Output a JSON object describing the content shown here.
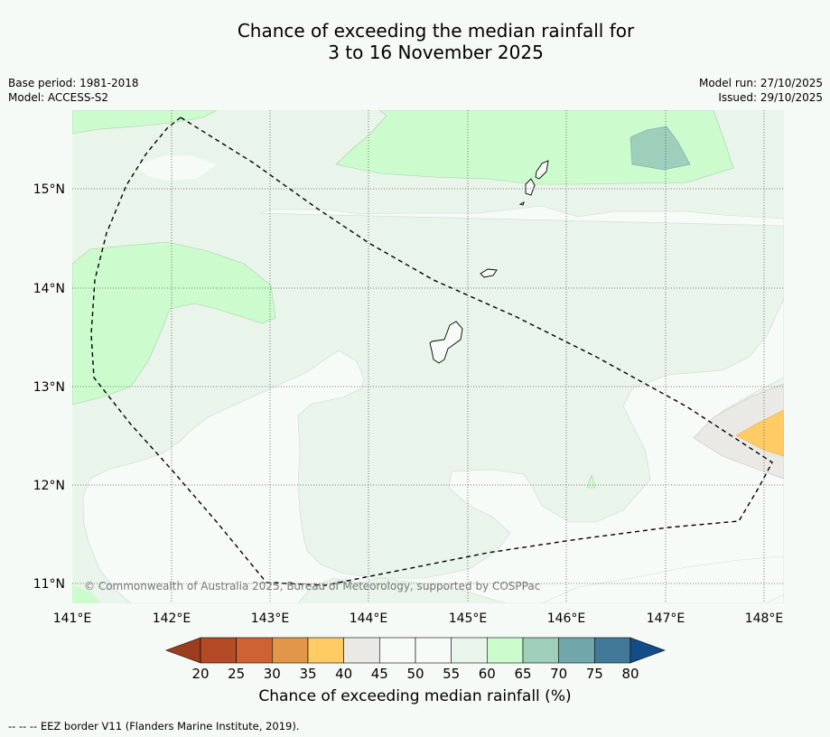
{
  "title": {
    "line1": "Chance of exceeding the median rainfall for",
    "line2": "3 to 16 November 2025"
  },
  "meta": {
    "base_period": "Base period: 1981-2018",
    "model": "Model: ACCESS-S2",
    "model_run": "Model run: 27/10/2025",
    "issued": "Issued: 29/10/2025"
  },
  "map": {
    "lon_labels": [
      "141°E",
      "142°E",
      "143°E",
      "144°E",
      "145°E",
      "146°E",
      "147°E",
      "148°E"
    ],
    "lat_labels": [
      "15°N",
      "14°N",
      "13°N",
      "12°N",
      "11°N"
    ],
    "credit": "© Commonwealth of Australia 2025, Bureau of Meteorology, supported by COSPPac"
  },
  "colorbar": {
    "ticks": [
      "20",
      "25",
      "30",
      "35",
      "40",
      "45",
      "50",
      "55",
      "60",
      "65",
      "70",
      "75",
      "80"
    ],
    "colors": {
      "lt20": "#9c3d1f",
      "b20_25": "#b54a26",
      "b25_30": "#cf6233",
      "b30_35": "#e29647",
      "b35_40": "#fecb65",
      "b40_45": "#ebe9e5",
      "b45_50": "#f7fbf8",
      "b50_55": "#f7fbf8",
      "b55_60": "#e9f4ea",
      "b60_65": "#ccfcce",
      "b65_70": "#9dcfbb",
      "b70_75": "#6fa7ab",
      "b75_80": "#427998",
      "gt80": "#134c88"
    },
    "label": "Chance of exceeding median rainfall (%)"
  },
  "footer": "--  --  -- EEZ border V11 (Flanders Marine Institute, 2019)."
}
